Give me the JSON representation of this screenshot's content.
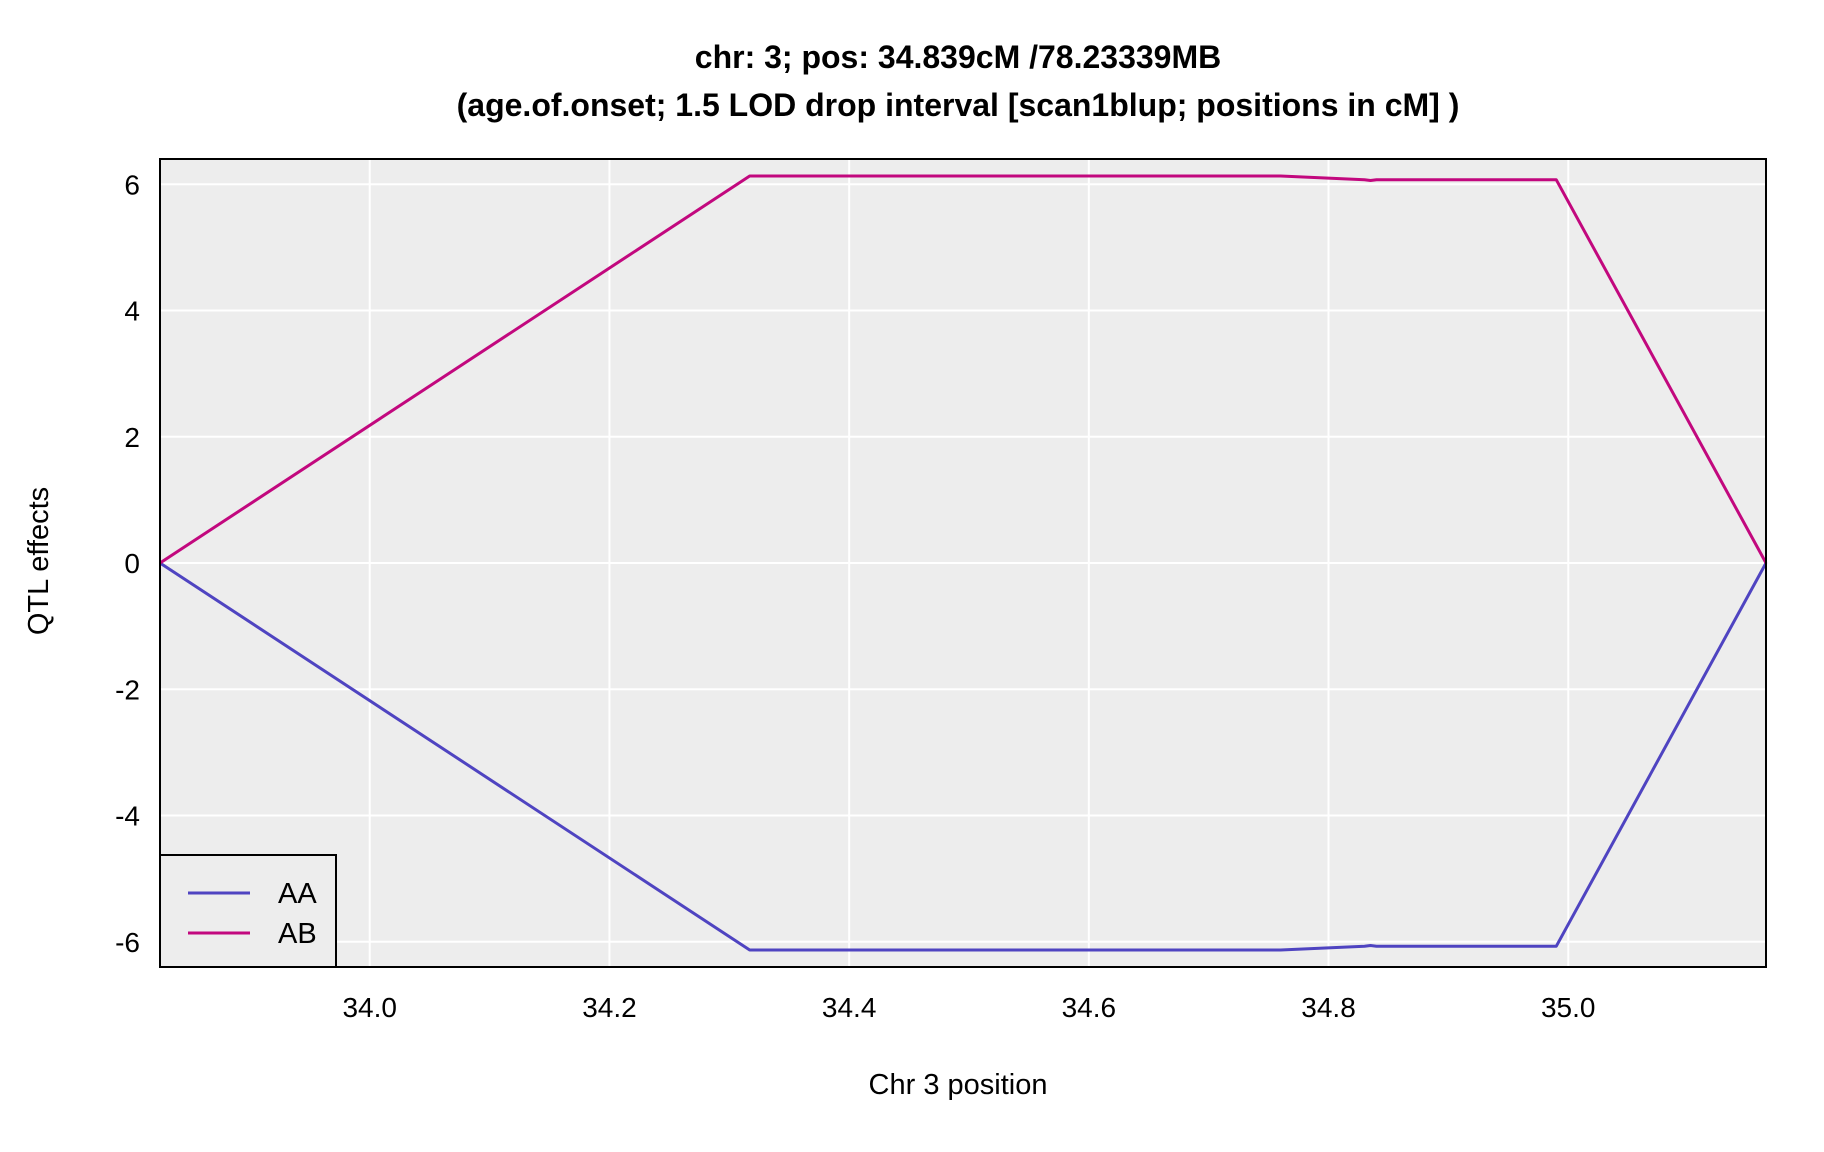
{
  "chart_data": {
    "type": "line",
    "title": "chr: 3; pos: 34.839cM /78.23339MB",
    "subtitle": "(age.of.onset; 1.5 LOD drop interval [scan1blup; positions in cM] )",
    "xlabel": "Chr 3 position",
    "ylabel": "QTL effects",
    "xlim": [
      33.825,
      35.165
    ],
    "ylim": [
      -6.4,
      6.4
    ],
    "x_ticks": [
      "34.0",
      "34.2",
      "34.4",
      "34.6",
      "34.8",
      "35.0"
    ],
    "x_tick_values": [
      34.0,
      34.2,
      34.4,
      34.6,
      34.8,
      35.0
    ],
    "y_ticks": [
      "-6",
      "-4",
      "-2",
      "0",
      "2",
      "4",
      "6"
    ],
    "y_tick_values": [
      -6,
      -4,
      -2,
      0,
      2,
      4,
      6
    ],
    "grid": true,
    "legend_position": "bottom-left",
    "background_color": "#ededed",
    "series": [
      {
        "name": "AA",
        "color": "#4f44c1",
        "points": [
          [
            33.825,
            0.0
          ],
          [
            34.317,
            -6.13
          ],
          [
            34.76,
            -6.13
          ],
          [
            34.83,
            -6.07
          ],
          [
            34.835,
            -6.06
          ],
          [
            34.84,
            -6.07
          ],
          [
            34.99,
            -6.07
          ],
          [
            35.165,
            0.0
          ]
        ]
      },
      {
        "name": "AB",
        "color": "#c2087e",
        "points": [
          [
            33.825,
            0.0
          ],
          [
            34.317,
            6.13
          ],
          [
            34.76,
            6.13
          ],
          [
            34.83,
            6.07
          ],
          [
            34.835,
            6.06
          ],
          [
            34.84,
            6.07
          ],
          [
            34.99,
            6.07
          ],
          [
            35.165,
            0.0
          ]
        ]
      }
    ]
  }
}
